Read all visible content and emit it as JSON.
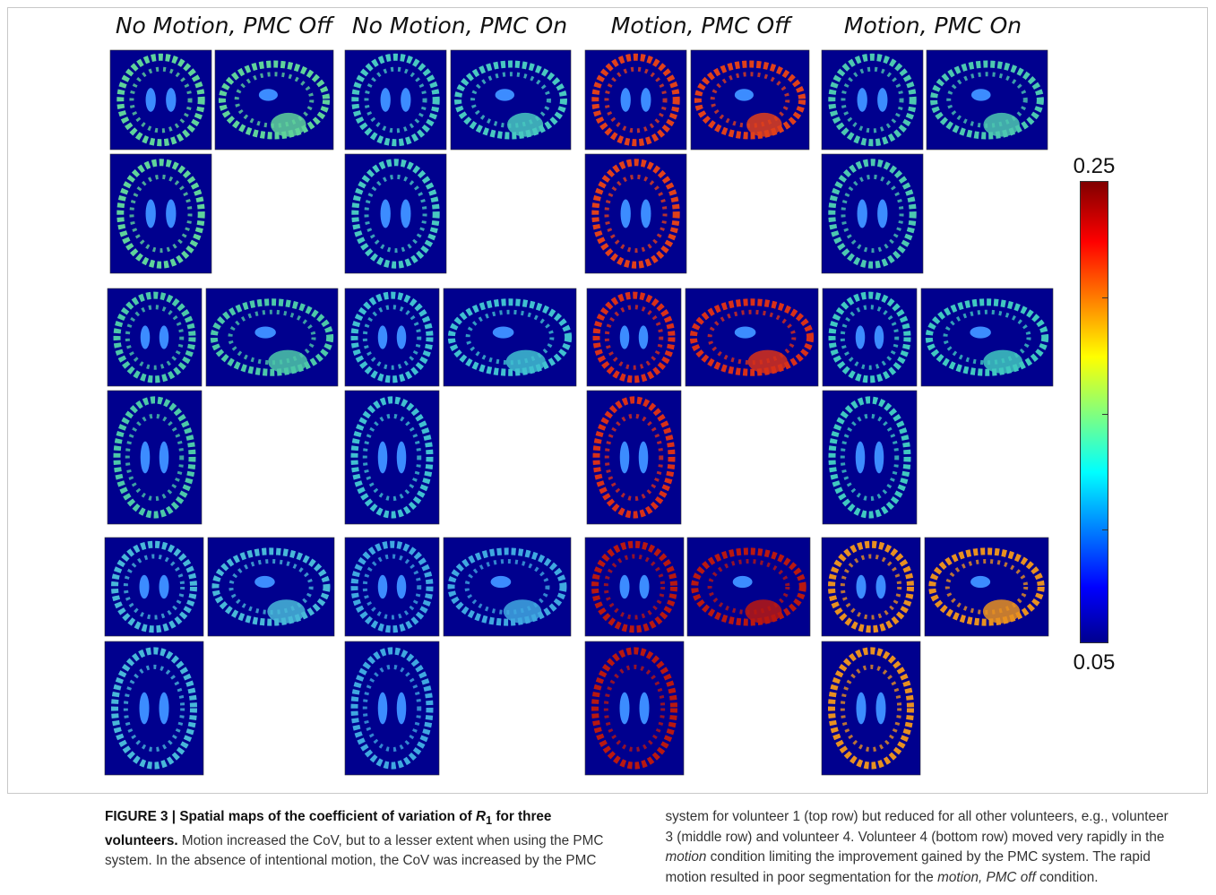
{
  "headers": [
    "No Motion, PMC Off",
    "No Motion, PMC On",
    "Motion, PMC Off",
    "Motion, PMC On"
  ],
  "colorbar": {
    "max_label": "0.25",
    "min_label": "0.05"
  },
  "caption": {
    "label": "FIGURE 3 |",
    "title": [
      "Spatial maps of the coefficient of variation of",
      "R",
      "1",
      "for three volunteers."
    ],
    "body": [
      "Motion increased the CoV, but to a lesser extent when using the PMC system. In the absence of intentional motion, the CoV was increased by the PMC system for volunteer 1 (top row) but reduced for all other volunteers, e.g., volunteer 3 (middle row) and volunteer 4. Volunteer 4 (bottom row) moved very rapidly in the",
      "motion",
      "condition limiting the improvement gained by the PMC system. The rapid motion resulted in poor segmentation for the",
      "motion, PMC off",
      "condition."
    ]
  }
}
